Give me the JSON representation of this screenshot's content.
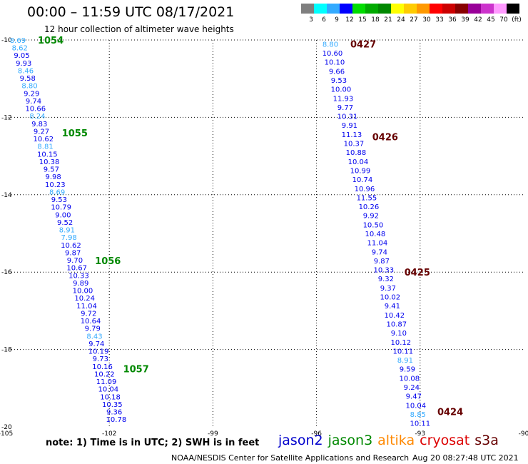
{
  "title": "00:00 – 11:59 UTC 08/17/2021",
  "subtitle": "12 hour collection of altimeter wave heights",
  "note": "note: 1) Time is in UTC; 2) SWH is in feet",
  "footer_org": "NOAA/NESDIS Center for Satellite Applications and Research",
  "footer_time": "Aug 20 08:27:48 UTC 2021",
  "satellites": [
    {
      "name": "jason2",
      "color": "#0000cc"
    },
    {
      "name": "jason3",
      "color": "#008800"
    },
    {
      "name": "altika",
      "color": "#ff8800"
    },
    {
      "name": "cryosat",
      "color": "#dd0000"
    },
    {
      "name": "s3a",
      "color": "#660000"
    }
  ],
  "legend": {
    "colors": [
      "#7f7f7f",
      "#00ffff",
      "#33aaff",
      "#0000ff",
      "#00dd00",
      "#00aa00",
      "#008800",
      "#ffff00",
      "#ffcc00",
      "#ff9900",
      "#ff0000",
      "#cc0000",
      "#880000",
      "#990099",
      "#cc33cc",
      "#ff99ff",
      "#000000"
    ],
    "labels": [
      "3",
      "6",
      "9",
      "12",
      "15",
      "18",
      "21",
      "24",
      "27",
      "30",
      "33",
      "36",
      "39",
      "42",
      "45",
      "70",
      "(ft)"
    ]
  },
  "chart_data": {
    "type": "scatter",
    "title": "00:00 – 11:59 UTC 08/17/2021",
    "xlim": [
      -105,
      -90
    ],
    "ylim": [
      -20,
      -10
    ],
    "xticks": [
      -105,
      -102,
      -99,
      -96,
      -93,
      -90
    ],
    "yticks": [
      -10,
      -12,
      -14,
      -16,
      -18,
      -20
    ],
    "grid": true,
    "tracks": [
      {
        "satellite": "jason3",
        "color": "#008800",
        "values": [
          "8.69",
          "8.62",
          "9.05",
          "9.93",
          "8.46",
          "9.58",
          "8.80",
          "9.29",
          "9.74",
          "10.66",
          "8.24",
          "9.83",
          "9.27",
          "10.62",
          "8.81",
          "10.15",
          "10.38",
          "9.57",
          "9.98",
          "10.23",
          "8.69",
          "9.53",
          "10.79",
          "9.00",
          "9.52",
          "8.91",
          "7.98",
          "10.62",
          "9.87",
          "9.70",
          "10.67",
          "10.33",
          "9.89",
          "10.00",
          "10.24",
          "11.04",
          "9.72",
          "10.64",
          "9.79",
          "8.43",
          "9.74",
          "10.19",
          "9.73",
          "10.16",
          "10.22",
          "11.09",
          "10.04",
          "10.18",
          "10.35",
          "9.36",
          "10.78"
        ],
        "time_labels": [
          {
            "text": "1054",
            "lat": -10.0
          },
          {
            "text": "1055",
            "lat": -12.4
          },
          {
            "text": "1056",
            "lat": -15.7
          },
          {
            "text": "1057",
            "lat": -18.5
          }
        ],
        "lon_start": -104.65,
        "lat_start": -10.0,
        "lon_end": -101.8,
        "lat_end": -19.8
      },
      {
        "satellite": "s3a",
        "color": "#660000",
        "values": [
          "8.80",
          "10.60",
          "10.10",
          "9.66",
          "9.53",
          "10.00",
          "11.93",
          "9.77",
          "10.31",
          "9.91",
          "11.13",
          "10.37",
          "10.88",
          "10.04",
          "10.99",
          "10.74",
          "10.96",
          "11.55",
          "10.26",
          "9.92",
          "10.50",
          "10.48",
          "11.04",
          "9.74",
          "9.87",
          "10.33",
          "9.32",
          "9.37",
          "10.02",
          "9.41",
          "10.42",
          "10.87",
          "9.10",
          "10.12",
          "10.11",
          "8.91",
          "9.59",
          "10.08",
          "9.24",
          "9.47",
          "10.04",
          "8.85",
          "10.11"
        ],
        "time_labels": [
          {
            "text": "0427",
            "lat": -10.1
          },
          {
            "text": "0426",
            "lat": -12.5
          },
          {
            "text": "0425",
            "lat": -16.0
          },
          {
            "text": "0424",
            "lat": -19.6
          }
        ],
        "lon_start": -95.6,
        "lat_start": -10.1,
        "lon_end": -93.0,
        "lat_end": -19.9
      }
    ]
  }
}
